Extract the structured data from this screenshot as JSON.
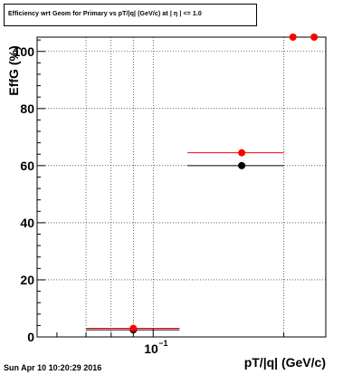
{
  "title": "Efficiency wrt Geom for Primary vs pT/|q| (GeV/c) at | η | <= 1.0",
  "footer_timestamp": "Sun Apr 10 10:20:29 2016",
  "colors": {
    "frame": "#000000",
    "grid": "#000000",
    "series_red": "#ff0000",
    "series_black": "#000000",
    "background": "#ffffff"
  },
  "chart_data": {
    "type": "scatter",
    "title": "Efficiency wrt Geom for Primary vs pT/|q| (GeV/c) at | η | <= 1.0",
    "xlabel": "pT/|q| (GeV/c)",
    "ylabel": "EffG (%)",
    "x_scale": "log",
    "xlim": [
      0.054,
      0.25
    ],
    "ylim": [
      0,
      105
    ],
    "grid": true,
    "y_ticks": [
      0,
      20,
      40,
      60,
      80,
      100
    ],
    "y_tick_labels": [
      "0",
      "20",
      "40",
      "60",
      "80",
      "100"
    ],
    "x_tick_labels": [
      {
        "x": 0.1,
        "text": "10",
        "exp": "−1"
      }
    ],
    "series": [
      {
        "color": "#000000",
        "points": [
          {
            "x": 0.09,
            "y": 2.5,
            "xlo": 0.07,
            "xhi": 0.115
          },
          {
            "x": 0.16,
            "y": 60,
            "xlo": 0.12,
            "xhi": 0.2
          }
        ]
      },
      {
        "color": "#ff0000",
        "points": [
          {
            "x": 0.09,
            "y": 3,
            "xlo": 0.07,
            "xhi": 0.115
          },
          {
            "x": 0.16,
            "y": 64.5,
            "xlo": 0.12,
            "xhi": 0.2
          },
          {
            "x": 0.21,
            "y": 105
          },
          {
            "x": 0.235,
            "y": 105
          }
        ]
      }
    ]
  }
}
